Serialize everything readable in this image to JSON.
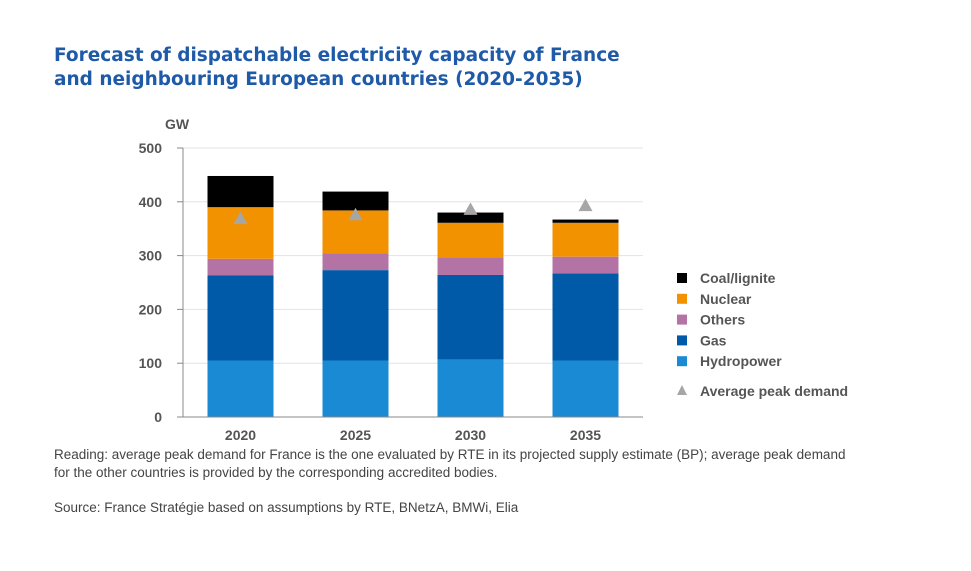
{
  "title_line1": "Forecast of dispatchable electricity capacity of France",
  "title_line2": "and neighbouring European countries (2020-2035)",
  "note_line1": "Reading: average peak demand for France is the one evaluated by RTE in its projected supply estimate (BP); average peak demand",
  "note_line2": "for the other countries is provided by the corresponding accredited bodies.",
  "source": "Source: France Stratégie based on assumptions by RTE, BNetzA, BMWi, Elia",
  "chart_data": {
    "type": "bar",
    "stacked": true,
    "title": "Forecast of dispatchable electricity capacity of France and neighbouring European countries (2020-2035)",
    "ylabel": "GW",
    "ylim": [
      0,
      500
    ],
    "yticks": [
      0,
      100,
      200,
      300,
      400,
      500
    ],
    "grid": true,
    "legend_position": "right",
    "categories": [
      "2020",
      "2025",
      "2030",
      "2035"
    ],
    "series": [
      {
        "name": "Hydropower",
        "color": "#1a8ad4",
        "values": [
          105,
          105,
          107,
          105
        ]
      },
      {
        "name": "Gas",
        "color": "#005aa8",
        "values": [
          158,
          168,
          157,
          162
        ]
      },
      {
        "name": "Others",
        "color": "#b473a5",
        "values": [
          31,
          31,
          33,
          31
        ]
      },
      {
        "name": "Nuclear",
        "color": "#f39200",
        "values": [
          96,
          80,
          64,
          63
        ]
      },
      {
        "name": "Coal/lignite",
        "color": "#000000",
        "values": [
          58,
          35,
          19,
          6
        ]
      }
    ],
    "peak_demand": {
      "name": "Average peak demand",
      "color": "#a6a6a6",
      "values": [
        369,
        376,
        386,
        393
      ]
    },
    "legend_order": [
      "Coal/lignite",
      "Nuclear",
      "Others",
      "Gas",
      "Hydropower"
    ]
  }
}
